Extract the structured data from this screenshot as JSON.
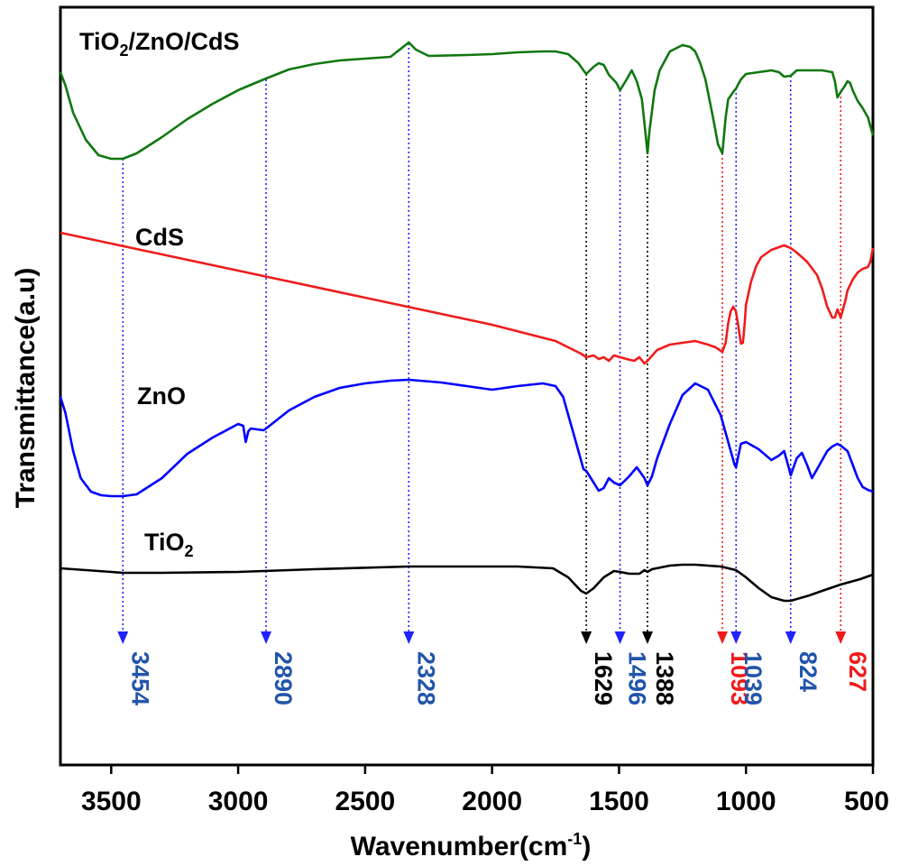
{
  "chart_data": {
    "type": "line",
    "title": "",
    "xlabel": "Wavenumber(cm",
    "xlabel_sup": "-1",
    "xlabel_suffix": ")",
    "ylabel": "Transmittance(a.u)",
    "xlim": [
      3700,
      500
    ],
    "x_reversed": true,
    "y_ticks_shown": false,
    "grid": false,
    "x_ticks": [
      3500,
      3000,
      2500,
      2000,
      1500,
      1000,
      500
    ],
    "x_tick_labels": [
      "3500",
      "3000",
      "2500",
      "2000",
      "1500",
      "1000",
      "500"
    ],
    "series": [
      {
        "name": "TiO",
        "name_sub": "2",
        "color": "#000000",
        "points": [
          [
            3700,
            630
          ],
          [
            3600,
            632
          ],
          [
            3500,
            634
          ],
          [
            3454,
            635
          ],
          [
            3300,
            635
          ],
          [
            3000,
            634
          ],
          [
            2700,
            631
          ],
          [
            2328,
            628
          ],
          [
            2100,
            628
          ],
          [
            1900,
            628
          ],
          [
            1760,
            630
          ],
          [
            1700,
            640
          ],
          [
            1650,
            655
          ],
          [
            1629,
            658
          ],
          [
            1600,
            652
          ],
          [
            1560,
            640
          ],
          [
            1520,
            633
          ],
          [
            1496,
            634
          ],
          [
            1460,
            636
          ],
          [
            1420,
            636
          ],
          [
            1400,
            632
          ],
          [
            1388,
            634
          ],
          [
            1370,
            631
          ],
          [
            1300,
            627
          ],
          [
            1250,
            626
          ],
          [
            1200,
            626
          ],
          [
            1150,
            627
          ],
          [
            1100,
            628
          ],
          [
            1039,
            632
          ],
          [
            1000,
            640
          ],
          [
            950,
            652
          ],
          [
            900,
            662
          ],
          [
            850,
            666
          ],
          [
            824,
            666
          ],
          [
            750,
            660
          ],
          [
            700,
            655
          ],
          [
            627,
            648
          ],
          [
            550,
            642
          ],
          [
            500,
            637
          ]
        ]
      },
      {
        "name": "ZnO",
        "color": "#0000ff",
        "points": [
          [
            3700,
            440
          ],
          [
            3680,
            458
          ],
          [
            3650,
            500
          ],
          [
            3620,
            530
          ],
          [
            3580,
            545
          ],
          [
            3540,
            549
          ],
          [
            3500,
            550
          ],
          [
            3454,
            550
          ],
          [
            3400,
            548
          ],
          [
            3300,
            530
          ],
          [
            3200,
            503
          ],
          [
            3100,
            485
          ],
          [
            3000,
            470
          ],
          [
            2980,
            472
          ],
          [
            2970,
            490
          ],
          [
            2960,
            478
          ],
          [
            2950,
            475
          ],
          [
            2900,
            477
          ],
          [
            2890,
            475
          ],
          [
            2800,
            455
          ],
          [
            2700,
            440
          ],
          [
            2600,
            430
          ],
          [
            2500,
            425
          ],
          [
            2400,
            422
          ],
          [
            2328,
            421
          ],
          [
            2200,
            424
          ],
          [
            2100,
            428
          ],
          [
            2000,
            432
          ],
          [
            1950,
            430
          ],
          [
            1900,
            428
          ],
          [
            1800,
            425
          ],
          [
            1750,
            428
          ],
          [
            1720,
            440
          ],
          [
            1700,
            460
          ],
          [
            1680,
            480
          ],
          [
            1660,
            500
          ],
          [
            1640,
            520
          ],
          [
            1629,
            522
          ],
          [
            1600,
            535
          ],
          [
            1580,
            544
          ],
          [
            1560,
            541
          ],
          [
            1540,
            530
          ],
          [
            1520,
            535
          ],
          [
            1496,
            538
          ],
          [
            1460,
            528
          ],
          [
            1430,
            518
          ],
          [
            1400,
            530
          ],
          [
            1388,
            538
          ],
          [
            1370,
            528
          ],
          [
            1350,
            508
          ],
          [
            1300,
            470
          ],
          [
            1250,
            438
          ],
          [
            1200,
            425
          ],
          [
            1150,
            432
          ],
          [
            1100,
            460
          ],
          [
            1080,
            480
          ],
          [
            1060,
            500
          ],
          [
            1045,
            515
          ],
          [
            1039,
            518
          ],
          [
            1030,
            505
          ],
          [
            1020,
            492
          ],
          [
            1000,
            490
          ],
          [
            950,
            498
          ],
          [
            900,
            510
          ],
          [
            870,
            505
          ],
          [
            850,
            500
          ],
          [
            830,
            520
          ],
          [
            824,
            527
          ],
          [
            800,
            508
          ],
          [
            780,
            502
          ],
          [
            760,
            515
          ],
          [
            740,
            530
          ],
          [
            720,
            520
          ],
          [
            700,
            510
          ],
          [
            680,
            500
          ],
          [
            660,
            495
          ],
          [
            640,
            492
          ],
          [
            627,
            494
          ],
          [
            600,
            500
          ],
          [
            580,
            515
          ],
          [
            560,
            530
          ],
          [
            540,
            540
          ],
          [
            520,
            543
          ],
          [
            500,
            545
          ]
        ]
      },
      {
        "name": "CdS",
        "color": "#ee1c1c",
        "points": [
          [
            3700,
            258
          ],
          [
            3500,
            270
          ],
          [
            3000,
            300
          ],
          [
            2500,
            330
          ],
          [
            2000,
            360
          ],
          [
            1750,
            378
          ],
          [
            1700,
            385
          ],
          [
            1650,
            392
          ],
          [
            1629,
            396
          ],
          [
            1600,
            394
          ],
          [
            1580,
            398
          ],
          [
            1560,
            396
          ],
          [
            1540,
            400
          ],
          [
            1520,
            394
          ],
          [
            1496,
            396
          ],
          [
            1470,
            398
          ],
          [
            1440,
            400
          ],
          [
            1420,
            396
          ],
          [
            1400,
            403
          ],
          [
            1388,
            400
          ],
          [
            1350,
            388
          ],
          [
            1300,
            382
          ],
          [
            1250,
            380
          ],
          [
            1200,
            378
          ],
          [
            1150,
            382
          ],
          [
            1120,
            385
          ],
          [
            1093,
            390
          ],
          [
            1080,
            380
          ],
          [
            1070,
            358
          ],
          [
            1060,
            345
          ],
          [
            1050,
            340
          ],
          [
            1040,
            345
          ],
          [
            1030,
            362
          ],
          [
            1020,
            381
          ],
          [
            1012,
            380
          ],
          [
            1005,
            358
          ],
          [
            1000,
            338
          ],
          [
            980,
            312
          ],
          [
            960,
            295
          ],
          [
            940,
            285
          ],
          [
            900,
            277
          ],
          [
            850,
            272
          ],
          [
            824,
            275
          ],
          [
            800,
            280
          ],
          [
            760,
            290
          ],
          [
            720,
            305
          ],
          [
            700,
            320
          ],
          [
            680,
            340
          ],
          [
            660,
            352
          ],
          [
            650,
            352
          ],
          [
            640,
            343
          ],
          [
            627,
            352
          ],
          [
            610,
            335
          ],
          [
            600,
            322
          ],
          [
            580,
            310
          ],
          [
            560,
            302
          ],
          [
            540,
            298
          ],
          [
            520,
            296
          ],
          [
            510,
            290
          ],
          [
            500,
            275
          ]
        ]
      },
      {
        "name": "TiO",
        "name_sub": "2",
        "name_suffix": "/ZnO/CdS",
        "color": "#117711",
        "points": [
          [
            3700,
            80
          ],
          [
            3680,
            95
          ],
          [
            3650,
            125
          ],
          [
            3600,
            155
          ],
          [
            3550,
            172
          ],
          [
            3500,
            176
          ],
          [
            3454,
            176
          ],
          [
            3400,
            170
          ],
          [
            3300,
            152
          ],
          [
            3200,
            132
          ],
          [
            3100,
            115
          ],
          [
            3000,
            100
          ],
          [
            2950,
            94
          ],
          [
            2890,
            87
          ],
          [
            2800,
            77
          ],
          [
            2700,
            71
          ],
          [
            2600,
            67
          ],
          [
            2500,
            65
          ],
          [
            2400,
            63
          ],
          [
            2350,
            52
          ],
          [
            2328,
            47
          ],
          [
            2300,
            55
          ],
          [
            2250,
            62
          ],
          [
            2100,
            61
          ],
          [
            2000,
            60
          ],
          [
            1900,
            58
          ],
          [
            1800,
            57
          ],
          [
            1750,
            57
          ],
          [
            1700,
            60
          ],
          [
            1660,
            70
          ],
          [
            1640,
            78
          ],
          [
            1629,
            82
          ],
          [
            1600,
            74
          ],
          [
            1580,
            70
          ],
          [
            1560,
            72
          ],
          [
            1540,
            83
          ],
          [
            1510,
            92
          ],
          [
            1496,
            100
          ],
          [
            1470,
            88
          ],
          [
            1450,
            78
          ],
          [
            1430,
            90
          ],
          [
            1410,
            110
          ],
          [
            1395,
            150
          ],
          [
            1388,
            170
          ],
          [
            1380,
            145
          ],
          [
            1360,
            100
          ],
          [
            1340,
            78
          ],
          [
            1300,
            57
          ],
          [
            1250,
            50
          ],
          [
            1220,
            52
          ],
          [
            1200,
            57
          ],
          [
            1180,
            70
          ],
          [
            1160,
            88
          ],
          [
            1130,
            130
          ],
          [
            1110,
            160
          ],
          [
            1093,
            170
          ],
          [
            1080,
            130
          ],
          [
            1070,
            110
          ],
          [
            1050,
            102
          ],
          [
            1039,
            98
          ],
          [
            1020,
            88
          ],
          [
            1000,
            82
          ],
          [
            950,
            80
          ],
          [
            900,
            78
          ],
          [
            870,
            80
          ],
          [
            850,
            85
          ],
          [
            824,
            84
          ],
          [
            800,
            78
          ],
          [
            750,
            78
          ],
          [
            700,
            78
          ],
          [
            660,
            80
          ],
          [
            650,
            90
          ],
          [
            640,
            108
          ],
          [
            627,
            102
          ],
          [
            610,
            95
          ],
          [
            600,
            90
          ],
          [
            590,
            92
          ],
          [
            580,
            100
          ],
          [
            560,
            112
          ],
          [
            540,
            120
          ],
          [
            520,
            130
          ],
          [
            500,
            150
          ]
        ]
      }
    ],
    "series_labels": [
      {
        "label": "TiO",
        "sub": "2",
        "suffix": "/ZnO/CdS",
        "color": "#117711"
      },
      {
        "label": "CdS",
        "color": "#ee1c1c"
      },
      {
        "label": "ZnO",
        "color": "#0000ff"
      },
      {
        "label": "TiO",
        "sub": "2",
        "color": "#000000"
      }
    ],
    "annotations": [
      {
        "label": "3454",
        "x": 3454,
        "color": "#2255aa",
        "arrow_color": "#2222ff"
      },
      {
        "label": "2890",
        "x": 2890,
        "color": "#2255aa",
        "arrow_color": "#2222ff"
      },
      {
        "label": "2328",
        "x": 2328,
        "color": "#2255aa",
        "arrow_color": "#2222ff"
      },
      {
        "label": "1629",
        "x": 1629,
        "color": "#000000",
        "arrow_color": "#000000"
      },
      {
        "label": "1496",
        "x": 1496,
        "color": "#2255aa",
        "arrow_color": "#2222ff"
      },
      {
        "label": "1388",
        "x": 1388,
        "color": "#000000",
        "arrow_color": "#000000"
      },
      {
        "label": "1093",
        "x": 1093,
        "color": "#ee1c1c",
        "arrow_color": "#ee1c1c"
      },
      {
        "label": "1039",
        "x": 1039,
        "color": "#2255aa",
        "arrow_color": "#2222ff"
      },
      {
        "label": "824",
        "x": 824,
        "color": "#2255aa",
        "arrow_color": "#2222ff"
      },
      {
        "label": "627",
        "x": 627,
        "color": "#ee1c1c",
        "arrow_color": "#ee1c1c"
      }
    ]
  }
}
